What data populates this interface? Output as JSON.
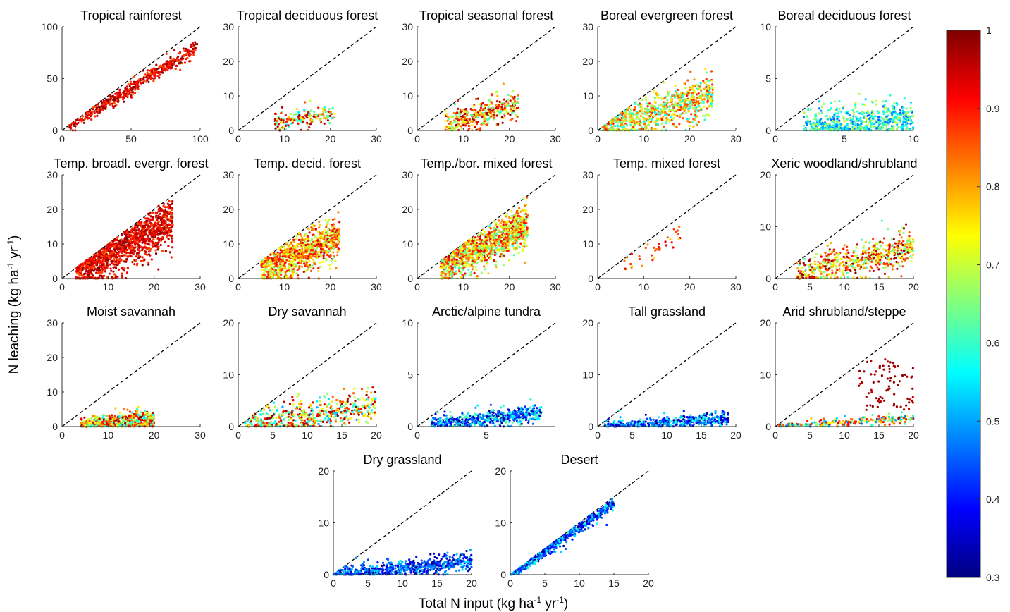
{
  "figure": {
    "ylabel": {
      "main": "N leaching (kg ha",
      "sup1": "-1",
      "mid": " yr",
      "sup2": "-1",
      "end": ")"
    },
    "xlabel": {
      "main": "Total N input (kg ha",
      "sup1": "-1",
      "mid": " yr",
      "sup2": "-1",
      "end": ")"
    }
  },
  "colorbar": {
    "min": 0.3,
    "max": 1.0,
    "ticks": [
      "0.3",
      "0.4",
      "0.5",
      "0.6",
      "0.7",
      "0.8",
      "0.9",
      "1"
    ],
    "colormap": "jet"
  },
  "chart_data": [
    {
      "type": "scatter",
      "title": "Tropical rainforest",
      "xlim": [
        0,
        100
      ],
      "ylim": [
        0,
        100
      ],
      "xticks": [
        "0",
        "50",
        "100"
      ],
      "yticks": [
        "0",
        "50",
        "100"
      ],
      "reference_line": "1:1",
      "cloud": {
        "x_range": [
          5,
          98
        ],
        "slope": 0.82,
        "offset": 0,
        "spread": 5,
        "y_min": 0,
        "color_range": [
          0.85,
          1.0
        ],
        "n": 480
      }
    },
    {
      "type": "scatter",
      "title": "Tropical deciduous forest",
      "xlim": [
        0,
        30
      ],
      "ylim": [
        0,
        30
      ],
      "xticks": [
        "0",
        "10",
        "20",
        "30"
      ],
      "yticks": [
        "0",
        "10",
        "20",
        "30"
      ],
      "reference_line": "1:1",
      "cloud": {
        "x_range": [
          8,
          21
        ],
        "slope": 0.25,
        "offset": 0,
        "spread": 2,
        "y_min": 0,
        "color_range": [
          0.55,
          1.0
        ],
        "n": 170
      }
    },
    {
      "type": "scatter",
      "title": "Tropical seasonal forest",
      "xlim": [
        0,
        30
      ],
      "ylim": [
        0,
        30
      ],
      "xticks": [
        "0",
        "10",
        "20",
        "30"
      ],
      "yticks": [
        "0",
        "10",
        "20",
        "30"
      ],
      "reference_line": "1:1",
      "cloud": {
        "x_range": [
          6,
          22
        ],
        "slope": 0.35,
        "offset": 0,
        "spread": 3,
        "y_min": 0,
        "color_range": [
          0.6,
          1.0
        ],
        "n": 380
      }
    },
    {
      "type": "scatter",
      "title": "Boreal evergreen forest",
      "xlim": [
        0,
        30
      ],
      "ylim": [
        0,
        30
      ],
      "xticks": [
        "0",
        "10",
        "20",
        "30"
      ],
      "yticks": [
        "0",
        "10",
        "20",
        "30"
      ],
      "reference_line": "1:1",
      "cloud": {
        "x_range": [
          1,
          25
        ],
        "slope": 0.42,
        "offset": 0,
        "spread": 4,
        "y_min": 0,
        "color_range": [
          0.55,
          0.9
        ],
        "n": 750
      }
    },
    {
      "type": "scatter",
      "title": "Boreal deciduous forest",
      "xlim": [
        0,
        10
      ],
      "ylim": [
        0,
        10
      ],
      "xticks": [
        "0",
        "5",
        "10"
      ],
      "yticks": [
        "0",
        "5",
        "10"
      ],
      "reference_line": "1:1",
      "cloud": {
        "x_range": [
          2,
          10
        ],
        "slope": 0.12,
        "offset": 0,
        "spread": 1.2,
        "y_min": 0,
        "color_range": [
          0.45,
          0.72
        ],
        "n": 600
      }
    },
    {
      "type": "scatter",
      "title": "Temp. broadl. evergr. forest",
      "xlim": [
        0,
        30
      ],
      "ylim": [
        0,
        30
      ],
      "xticks": [
        "0",
        "10",
        "20",
        "30"
      ],
      "yticks": [
        "0",
        "10",
        "20",
        "30"
      ],
      "reference_line": "1:1",
      "cloud": {
        "x_range": [
          3,
          24
        ],
        "slope": 0.7,
        "offset": 0,
        "spread": 5,
        "y_min": 0,
        "color_range": [
          0.85,
          1.0
        ],
        "n": 1300
      }
    },
    {
      "type": "scatter",
      "title": "Temp. decid. forest",
      "xlim": [
        0,
        30
      ],
      "ylim": [
        0,
        30
      ],
      "xticks": [
        "0",
        "10",
        "20",
        "30"
      ],
      "yticks": [
        "0",
        "10",
        "20",
        "30"
      ],
      "reference_line": "1:1",
      "cloud": {
        "x_range": [
          5,
          22
        ],
        "slope": 0.55,
        "offset": 0,
        "spread": 4,
        "y_min": 0,
        "color_range": [
          0.65,
          0.95
        ],
        "n": 950
      }
    },
    {
      "type": "scatter",
      "title": "Temp./bor. mixed forest",
      "xlim": [
        0,
        30
      ],
      "ylim": [
        0,
        30
      ],
      "xticks": [
        "0",
        "10",
        "20",
        "30"
      ],
      "yticks": [
        "0",
        "10",
        "20",
        "30"
      ],
      "reference_line": "1:1",
      "cloud": {
        "x_range": [
          5,
          24
        ],
        "slope": 0.65,
        "offset": 0,
        "spread": 4,
        "y_min": 0,
        "color_range": [
          0.6,
          0.95
        ],
        "n": 1200
      }
    },
    {
      "type": "scatter",
      "title": "Temp. mixed forest",
      "xlim": [
        0,
        30
      ],
      "ylim": [
        0,
        30
      ],
      "xticks": [
        "0",
        "10",
        "20",
        "30"
      ],
      "yticks": [
        "0",
        "10",
        "20",
        "30"
      ],
      "reference_line": "1:1",
      "cloud": {
        "x_range": [
          5,
          19
        ],
        "slope": 0.7,
        "offset": 0,
        "spread": 3,
        "y_min": 0,
        "color_range": [
          0.75,
          0.95
        ],
        "n": 38
      }
    },
    {
      "type": "scatter",
      "title": "Xeric woodland/shrubland",
      "xlim": [
        0,
        20
      ],
      "ylim": [
        0,
        20
      ],
      "xticks": [
        "0",
        "5",
        "10",
        "15",
        "20"
      ],
      "yticks": [
        "0",
        "10",
        "20"
      ],
      "reference_line": "1:1",
      "cloud": {
        "x_range": [
          3,
          20
        ],
        "slope": 0.3,
        "offset": 0,
        "spread": 2.5,
        "y_min": 0,
        "color_range": [
          0.6,
          1.0
        ],
        "n": 560
      }
    },
    {
      "type": "scatter",
      "title": "Moist savannah",
      "xlim": [
        0,
        30
      ],
      "ylim": [
        0,
        30
      ],
      "xticks": [
        "0",
        "10",
        "20",
        "30"
      ],
      "yticks": [
        "0",
        "10",
        "20",
        "30"
      ],
      "reference_line": "1:1",
      "cloud": {
        "x_range": [
          4,
          20
        ],
        "slope": 0.1,
        "offset": 0,
        "spread": 1.6,
        "y_min": 0,
        "color_range": [
          0.55,
          1.0
        ],
        "n": 720
      }
    },
    {
      "type": "scatter",
      "title": "Dry savannah",
      "xlim": [
        0,
        20
      ],
      "ylim": [
        0,
        20
      ],
      "xticks": [
        "0",
        "5",
        "10",
        "15",
        "20"
      ],
      "yticks": [
        "0",
        "10",
        "20"
      ],
      "reference_line": "1:1",
      "cloud": {
        "x_range": [
          1,
          20
        ],
        "slope": 0.2,
        "offset": 0,
        "spread": 2.2,
        "y_min": 0,
        "color_range": [
          0.5,
          1.0
        ],
        "n": 520
      }
    },
    {
      "type": "scatter",
      "title": "Arctic/alpine tundra",
      "xlim": [
        0,
        10
      ],
      "ylim": [
        0,
        10
      ],
      "xticks": [
        "0",
        "5"
      ],
      "yticks": [
        "0",
        "5",
        "10"
      ],
      "reference_line": "1:1",
      "cloud": {
        "x_range": [
          1,
          9
        ],
        "slope": 0.15,
        "offset": 0,
        "spread": 0.6,
        "y_min": 0,
        "color_range": [
          0.3,
          0.65
        ],
        "n": 580
      }
    },
    {
      "type": "scatter",
      "title": "Tall grassland",
      "xlim": [
        0,
        20
      ],
      "ylim": [
        0,
        20
      ],
      "xticks": [
        "0",
        "5",
        "10",
        "15",
        "20"
      ],
      "yticks": [
        "0",
        "10",
        "20"
      ],
      "reference_line": "1:1",
      "cloud": {
        "x_range": [
          1,
          19
        ],
        "slope": 0.08,
        "offset": 0,
        "spread": 0.9,
        "y_min": 0,
        "color_range": [
          0.3,
          0.6
        ],
        "n": 480
      }
    },
    {
      "type": "scatter",
      "title": "Arid shrubland/steppe",
      "xlim": [
        0,
        20
      ],
      "ylim": [
        0,
        20
      ],
      "xticks": [
        "0",
        "5",
        "10",
        "15",
        "20"
      ],
      "yticks": [
        "0",
        "10",
        "20"
      ],
      "reference_line": "1:1",
      "cloud": {
        "x_range": [
          0,
          20
        ],
        "slope": 0.08,
        "offset": 0,
        "spread": 0.6,
        "y_min": 0,
        "color_range": [
          0.45,
          1.0
        ],
        "n": 230
      },
      "cluster": {
        "x_range": [
          12,
          20
        ],
        "y_range": [
          3,
          13
        ],
        "color_range": [
          0.95,
          1.0
        ],
        "n": 80
      }
    },
    {
      "type": "scatter",
      "title": "Dry grassland",
      "xlim": [
        0,
        20
      ],
      "ylim": [
        0,
        20
      ],
      "xticks": [
        "0",
        "5",
        "10",
        "15",
        "20"
      ],
      "yticks": [
        "0",
        "10",
        "20"
      ],
      "reference_line": "1:1",
      "cloud": {
        "x_range": [
          0,
          20
        ],
        "slope": 0.12,
        "offset": 0,
        "spread": 1.2,
        "y_min": 0,
        "color_range": [
          0.3,
          0.55
        ],
        "n": 640
      }
    },
    {
      "type": "scatter",
      "title": "Desert",
      "xlim": [
        0,
        20
      ],
      "ylim": [
        0,
        20
      ],
      "xticks": [
        "0",
        "5",
        "10",
        "15",
        "20"
      ],
      "yticks": [
        "0",
        "10",
        "20"
      ],
      "reference_line": "1:1",
      "cloud": {
        "x_range": [
          0,
          15
        ],
        "slope": 0.92,
        "offset": 0,
        "spread": 0.7,
        "y_min": 0,
        "color_range": [
          0.3,
          0.6
        ],
        "n": 600
      }
    }
  ]
}
